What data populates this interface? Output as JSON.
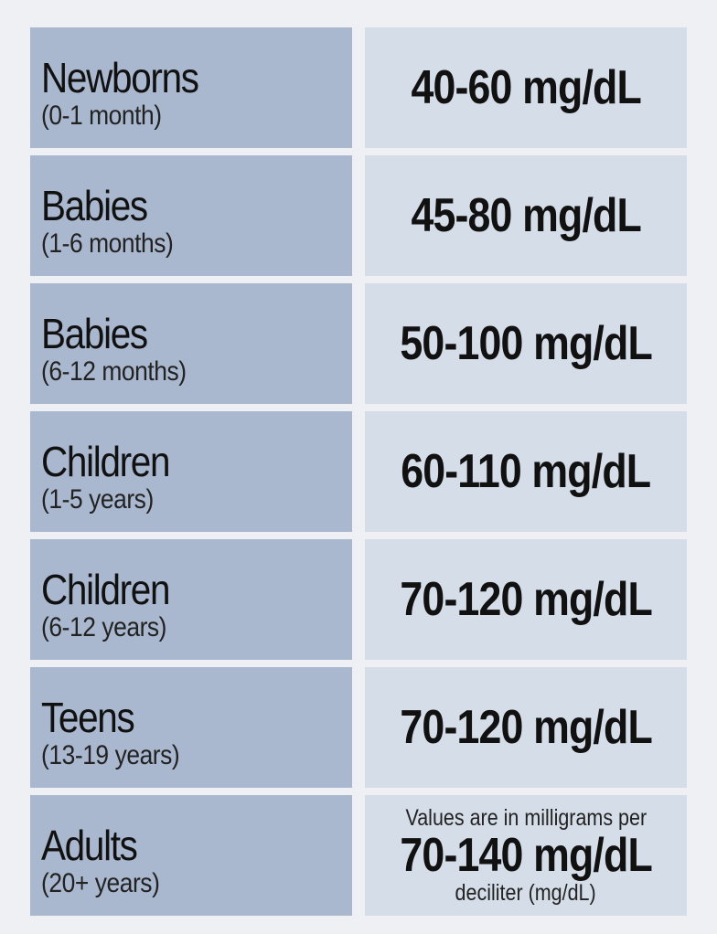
{
  "table": {
    "rows": [
      {
        "group": "Newborns",
        "age": "(0-1 month)",
        "range": "40-60 mg/dL"
      },
      {
        "group": "Babies",
        "age": "(1-6 months)",
        "range": "45-80 mg/dL"
      },
      {
        "group": "Babies",
        "age": "(6-12 months)",
        "range": "50-100 mg/dL"
      },
      {
        "group": "Children",
        "age": "(1-5 years)",
        "range": "60-110 mg/dL"
      },
      {
        "group": "Children",
        "age": "(6-12 years)",
        "range": "70-120 mg/dL"
      },
      {
        "group": "Teens",
        "age": "(13-19 years)",
        "range": "70-120 mg/dL"
      },
      {
        "group": "Adults",
        "age": "(20+ years)",
        "range": "70-140 mg/dL"
      }
    ],
    "note": {
      "before": "Values are in milligrams per",
      "after": "deciliter (mg/dL)"
    }
  }
}
